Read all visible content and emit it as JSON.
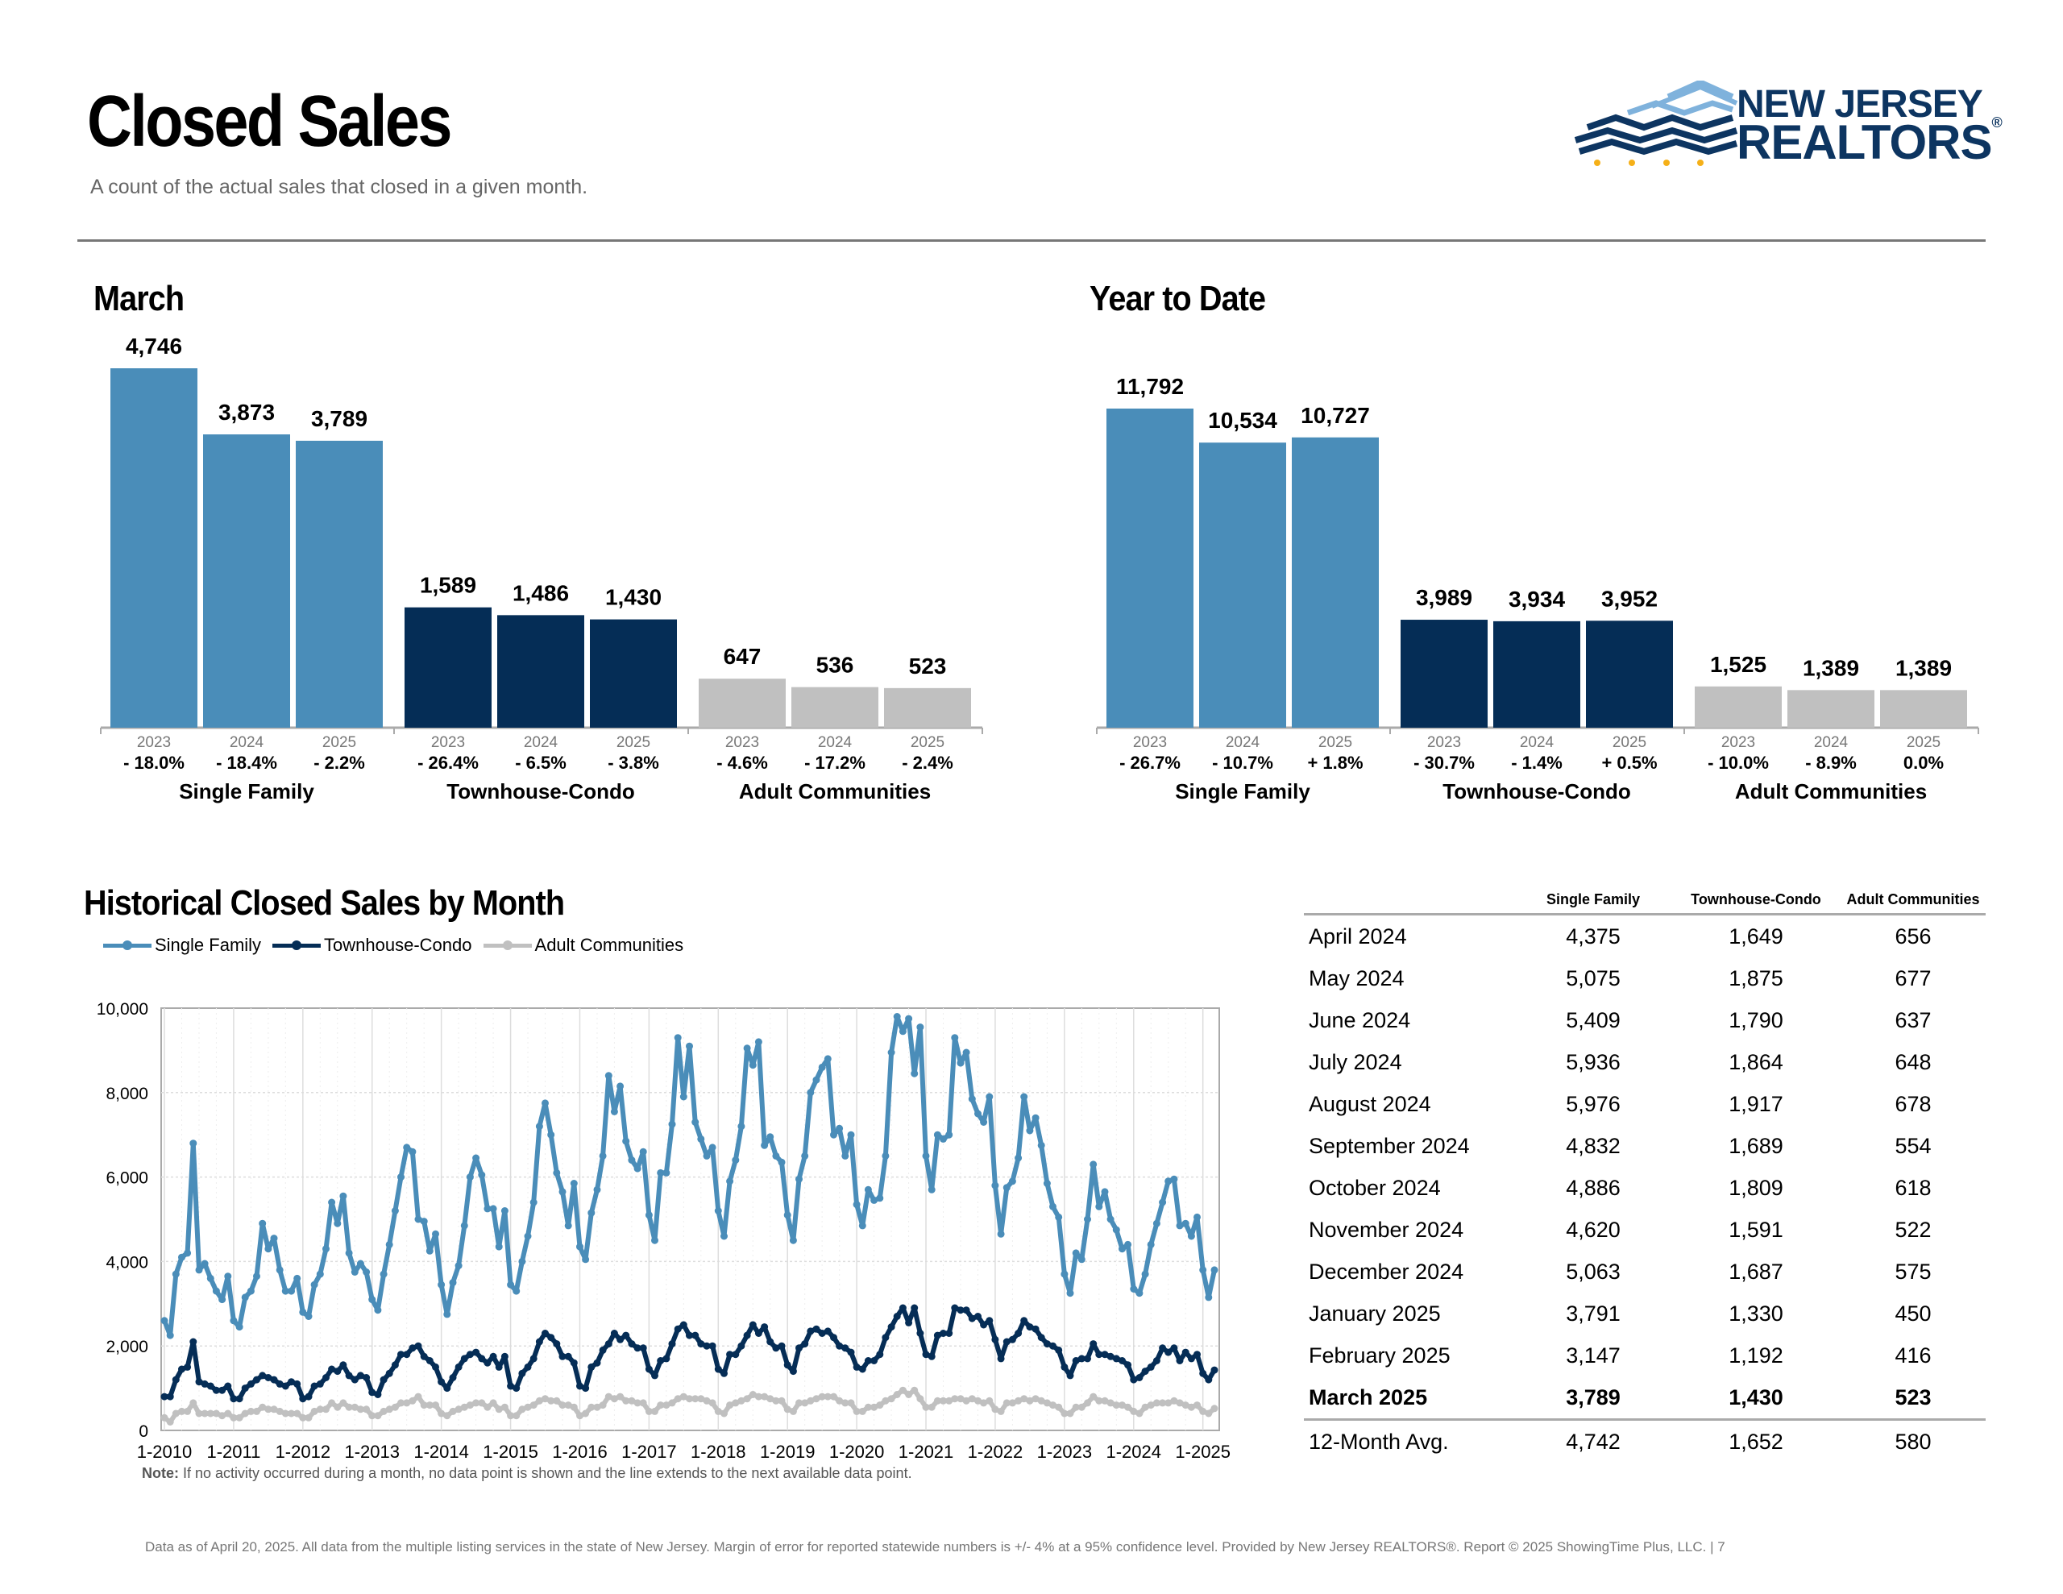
{
  "header": {
    "title": "Closed Sales",
    "subtitle": "A count of the actual sales that closed in a given month.",
    "logo_line1": "NEW JERSEY",
    "logo_line2": "REALTORS",
    "logo_reg": "®"
  },
  "colors": {
    "single_family": "#4a8db9",
    "townhouse_condo": "#052d56",
    "adult_communities": "#c0c0c0",
    "logo_light": "#7fb2dc",
    "logo_dark": "#0d3561",
    "logo_dots": "#f5b018"
  },
  "chart_data": [
    {
      "type": "bar",
      "title": "March",
      "groups": [
        {
          "name": "Single Family",
          "years": [
            "2023",
            "2024",
            "2025"
          ],
          "values": [
            4746,
            3873,
            3789
          ],
          "value_labels": [
            "4,746",
            "3,873",
            "3,789"
          ],
          "changes": [
            "- 18.0%",
            "- 18.4%",
            "- 2.2%"
          ]
        },
        {
          "name": "Townhouse-Condo",
          "years": [
            "2023",
            "2024",
            "2025"
          ],
          "values": [
            1589,
            1486,
            1430
          ],
          "value_labels": [
            "1,589",
            "1,486",
            "1,430"
          ],
          "changes": [
            "- 26.4%",
            "- 6.5%",
            "- 3.8%"
          ]
        },
        {
          "name": "Adult Communities",
          "years": [
            "2023",
            "2024",
            "2025"
          ],
          "values": [
            647,
            536,
            523
          ],
          "value_labels": [
            "647",
            "536",
            "523"
          ],
          "changes": [
            "- 4.6%",
            "- 17.2%",
            "- 2.4%"
          ]
        }
      ]
    },
    {
      "type": "bar",
      "title": "Year to Date",
      "groups": [
        {
          "name": "Single Family",
          "years": [
            "2023",
            "2024",
            "2025"
          ],
          "values": [
            11792,
            10534,
            10727
          ],
          "value_labels": [
            "11,792",
            "10,534",
            "10,727"
          ],
          "changes": [
            "- 26.7%",
            "- 10.7%",
            "+ 1.8%"
          ]
        },
        {
          "name": "Townhouse-Condo",
          "years": [
            "2023",
            "2024",
            "2025"
          ],
          "values": [
            3989,
            3934,
            3952
          ],
          "value_labels": [
            "3,989",
            "3,934",
            "3,952"
          ],
          "changes": [
            "- 30.7%",
            "- 1.4%",
            "+ 0.5%"
          ]
        },
        {
          "name": "Adult Communities",
          "years": [
            "2023",
            "2024",
            "2025"
          ],
          "values": [
            1525,
            1389,
            1389
          ],
          "value_labels": [
            "1,525",
            "1,389",
            "1,389"
          ],
          "changes": [
            "- 10.0%",
            "- 8.9%",
            "0.0%"
          ]
        }
      ]
    },
    {
      "type": "line",
      "title": "Historical Closed Sales by Month",
      "x_start": "1-2010",
      "x_ticks": [
        "1-2010",
        "1-2011",
        "1-2012",
        "1-2013",
        "1-2014",
        "1-2015",
        "1-2016",
        "1-2017",
        "1-2018",
        "1-2019",
        "1-2020",
        "1-2021",
        "1-2022",
        "1-2023",
        "1-2024",
        "1-2025"
      ],
      "y_ticks": [
        "0",
        "2,000",
        "4,000",
        "6,000",
        "8,000",
        "10,000"
      ],
      "ylim": [
        0,
        10000
      ],
      "grid": true,
      "legend_position": "top-left",
      "series": [
        {
          "name": "Single Family",
          "values": [
            2600,
            2250,
            3700,
            4100,
            4200,
            6800,
            3800,
            3950,
            3600,
            3300,
            3100,
            3650,
            2600,
            2450,
            3150,
            3300,
            3650,
            4900,
            4300,
            4550,
            3800,
            3300,
            3300,
            3600,
            2800,
            2700,
            3450,
            3700,
            4300,
            5400,
            4900,
            5550,
            4200,
            3750,
            3950,
            3750,
            3100,
            2850,
            3700,
            4400,
            5200,
            6000,
            6700,
            6600,
            5000,
            4950,
            4250,
            4650,
            3450,
            2750,
            3500,
            3900,
            4850,
            6000,
            6450,
            6050,
            5250,
            5250,
            4350,
            5200,
            3450,
            3300,
            4000,
            4600,
            5400,
            7200,
            7750,
            7000,
            6100,
            5650,
            4850,
            5850,
            4350,
            4050,
            5150,
            5700,
            6500,
            8400,
            7550,
            8150,
            6850,
            6400,
            6200,
            6600,
            5100,
            4500,
            6100,
            6100,
            7250,
            9300,
            7900,
            9100,
            7300,
            6900,
            6500,
            6700,
            5200,
            4600,
            5900,
            6400,
            7200,
            9050,
            8650,
            9200,
            6750,
            6950,
            6500,
            6350,
            5100,
            4500,
            5950,
            6500,
            8000,
            8300,
            8600,
            8800,
            7000,
            7150,
            6500,
            7000,
            5350,
            4850,
            5700,
            5450,
            5500,
            6500,
            8950,
            9800,
            9450,
            9750,
            8450,
            9550,
            6500,
            5700,
            7000,
            6900,
            7000,
            9300,
            8700,
            8950,
            7850,
            7500,
            7300,
            7900,
            5800,
            4650,
            5750,
            5900,
            6450,
            7900,
            7100,
            7400,
            6750,
            5850,
            5300,
            5050,
            3700,
            3250,
            4200,
            4050,
            5000,
            6300,
            5300,
            5650,
            5000,
            4750,
            4300,
            4400,
            3350,
            3250,
            3700,
            4400,
            4900,
            5400,
            5900,
            5950,
            4850,
            4900,
            4600,
            5050,
            3800,
            3150,
            3800
          ]
        },
        {
          "name": "Townhouse-Condo",
          "values": [
            800,
            800,
            1200,
            1450,
            1500,
            2100,
            1150,
            1100,
            1050,
            950,
            950,
            1050,
            750,
            750,
            1000,
            1100,
            1200,
            1300,
            1250,
            1200,
            1100,
            1050,
            1150,
            1100,
            750,
            800,
            1050,
            1100,
            1250,
            1450,
            1400,
            1550,
            1300,
            1200,
            1300,
            1250,
            900,
            850,
            1200,
            1350,
            1550,
            1800,
            1800,
            1950,
            2000,
            1750,
            1650,
            1500,
            1150,
            1000,
            1250,
            1500,
            1700,
            1800,
            1850,
            1700,
            1600,
            1750,
            1500,
            1750,
            1050,
            1000,
            1350,
            1500,
            1700,
            2100,
            2300,
            2200,
            2050,
            1750,
            1750,
            1600,
            1050,
            1000,
            1500,
            1600,
            1900,
            2050,
            2300,
            2150,
            2250,
            2050,
            1950,
            1950,
            1450,
            1300,
            1650,
            1700,
            2050,
            2400,
            2500,
            2250,
            2250,
            2050,
            2000,
            2000,
            1450,
            1350,
            1800,
            1800,
            2000,
            2250,
            2500,
            2300,
            2450,
            2100,
            1950,
            2000,
            1550,
            1400,
            1950,
            2050,
            2350,
            2400,
            2300,
            2350,
            2200,
            2000,
            1950,
            1850,
            1500,
            1450,
            1650,
            1650,
            1800,
            2200,
            2450,
            2700,
            2900,
            2550,
            2900,
            2300,
            1800,
            1750,
            2250,
            2300,
            2300,
            2900,
            2850,
            2850,
            2650,
            2700,
            2500,
            2600,
            2150,
            1700,
            2100,
            2150,
            2300,
            2600,
            2450,
            2400,
            2200,
            2050,
            2000,
            1900,
            1500,
            1300,
            1650,
            1700,
            1700,
            2050,
            1800,
            1800,
            1750,
            1700,
            1650,
            1550,
            1200,
            1250,
            1400,
            1500,
            1650,
            1950,
            1850,
            1950,
            1650,
            1850,
            1700,
            1800,
            1350,
            1200,
            1430
          ]
        },
        {
          "name": "Adult Communities",
          "values": [
            300,
            200,
            400,
            450,
            450,
            650,
            400,
            400,
            400,
            400,
            350,
            400,
            300,
            300,
            400,
            450,
            450,
            550,
            500,
            500,
            450,
            400,
            400,
            400,
            300,
            300,
            450,
            500,
            500,
            650,
            550,
            650,
            550,
            550,
            500,
            500,
            350,
            350,
            450,
            500,
            550,
            650,
            650,
            700,
            800,
            600,
            600,
            600,
            400,
            350,
            450,
            500,
            550,
            600,
            650,
            650,
            550,
            650,
            500,
            550,
            350,
            350,
            500,
            550,
            600,
            700,
            750,
            700,
            700,
            600,
            600,
            550,
            350,
            400,
            550,
            550,
            600,
            800,
            750,
            800,
            700,
            700,
            650,
            650,
            450,
            450,
            600,
            600,
            650,
            750,
            800,
            750,
            750,
            750,
            700,
            650,
            450,
            400,
            600,
            650,
            700,
            750,
            850,
            800,
            800,
            750,
            700,
            700,
            500,
            450,
            650,
            650,
            700,
            750,
            800,
            800,
            800,
            700,
            650,
            650,
            450,
            450,
            550,
            550,
            600,
            700,
            750,
            850,
            950,
            850,
            950,
            750,
            550,
            550,
            700,
            700,
            700,
            750,
            750,
            700,
            750,
            700,
            650,
            700,
            500,
            450,
            650,
            650,
            700,
            750,
            700,
            750,
            700,
            650,
            600,
            550,
            400,
            400,
            550,
            550,
            650,
            800,
            700,
            700,
            650,
            600,
            600,
            550,
            450,
            400,
            550,
            600,
            650,
            650,
            650,
            700,
            650,
            600,
            550,
            600,
            450,
            400,
            520
          ]
        }
      ]
    }
  ],
  "historical": {
    "title": "Historical Closed Sales by Month",
    "legend": [
      "Single Family",
      "Townhouse-Condo",
      "Adult Communities"
    ],
    "note_label": "Note:",
    "note_text": " If no activity occurred during a month, no data point is shown and the line extends to the next available data point."
  },
  "table": {
    "headers": [
      "",
      "Single Family",
      "Townhouse-Condo",
      "Adult Communities"
    ],
    "rows": [
      [
        "April 2024",
        "4,375",
        "1,649",
        "656"
      ],
      [
        "May 2024",
        "5,075",
        "1,875",
        "677"
      ],
      [
        "June 2024",
        "5,409",
        "1,790",
        "637"
      ],
      [
        "July 2024",
        "5,936",
        "1,864",
        "648"
      ],
      [
        "August 2024",
        "5,976",
        "1,917",
        "678"
      ],
      [
        "September 2024",
        "4,832",
        "1,689",
        "554"
      ],
      [
        "October 2024",
        "4,886",
        "1,809",
        "618"
      ],
      [
        "November 2024",
        "4,620",
        "1,591",
        "522"
      ],
      [
        "December 2024",
        "5,063",
        "1,687",
        "575"
      ],
      [
        "January 2025",
        "3,791",
        "1,330",
        "450"
      ],
      [
        "February 2025",
        "3,147",
        "1,192",
        "416"
      ],
      [
        "March 2025",
        "3,789",
        "1,430",
        "523"
      ]
    ],
    "avg_row": [
      "12-Month Avg.",
      "4,742",
      "1,652",
      "580"
    ]
  },
  "footer": "Data as of April 20, 2025. All data from the multiple listing services in the state of New Jersey. Margin of error for reported statewide numbers is +/- 4% at a 95% confidence level. Provided by New Jersey REALTORS®. Report © 2025 ShowingTime Plus, LLC. |  7"
}
